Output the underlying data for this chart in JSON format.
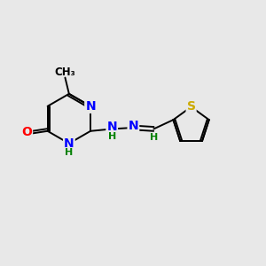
{
  "background_color": "#e8e8e8",
  "bond_color": "#000000",
  "atom_colors": {
    "N": "#0000ff",
    "O": "#ff0000",
    "S": "#ccaa00",
    "C": "#000000",
    "H": "#008000"
  },
  "font_size_atoms": 10,
  "font_size_h": 8,
  "figsize": [
    3.0,
    3.0
  ],
  "dpi": 100
}
